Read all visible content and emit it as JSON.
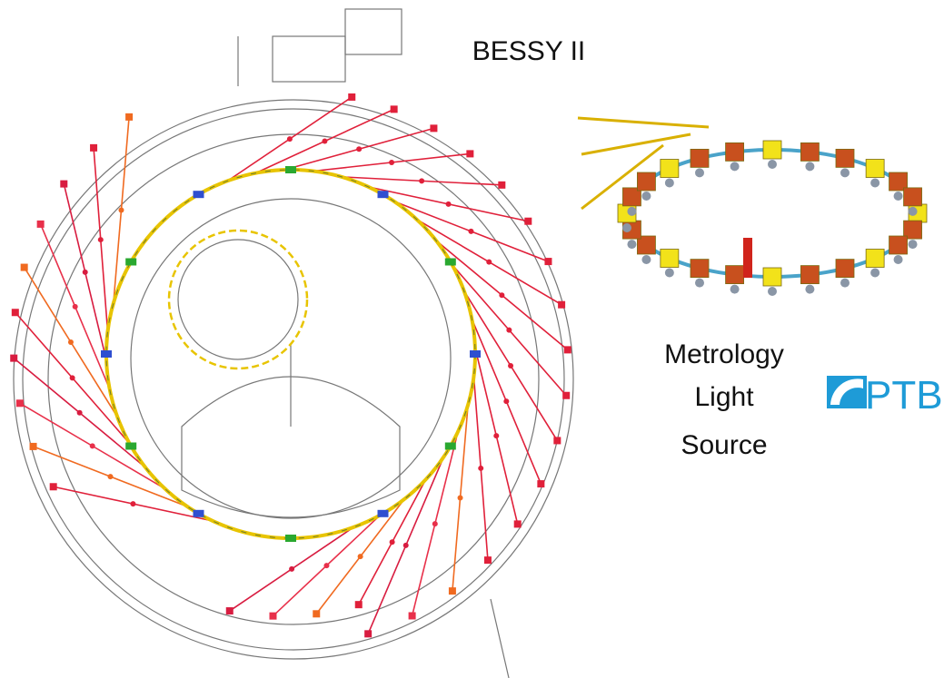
{
  "labels": {
    "bessy": "BESSY II",
    "mls": [
      "Metrology",
      "Light",
      "Source"
    ],
    "logo": "PTB"
  }
}
